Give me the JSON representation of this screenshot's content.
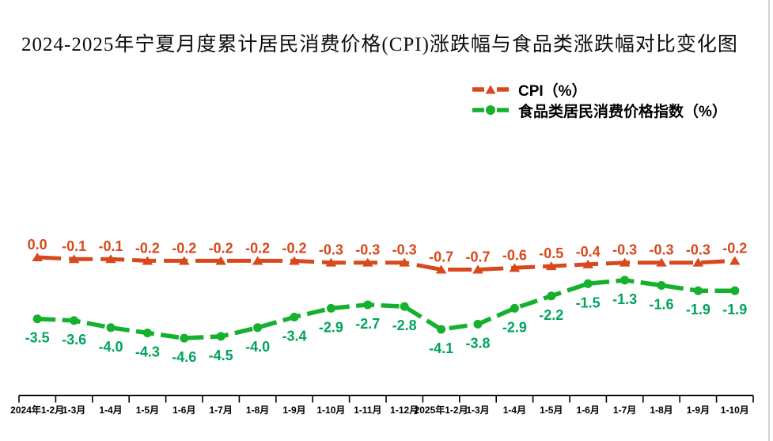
{
  "chart_data": {
    "type": "line",
    "title": "2024-2025年宁夏月度累计居民消费价格(CPI)涨跌幅与食品类涨跌幅对比变化图",
    "categories": [
      "2024年1-2月",
      "1-3月",
      "1-4月",
      "1-5月",
      "1-6月",
      "1-7月",
      "1-8月",
      "1-9月",
      "1-10月",
      "1-11月",
      "1-12月",
      "2025年1-2月",
      "1-3月",
      "1-4月",
      "1-5月",
      "1-6月",
      "1-7月",
      "1-8月",
      "1-9月",
      "1-10月"
    ],
    "series": [
      {
        "id": "cpi",
        "name": "CPI（%）",
        "color": "#d7481c",
        "label_color": "#d7481c",
        "marker": "triangle",
        "values": [
          0.0,
          -0.1,
          -0.1,
          -0.2,
          -0.2,
          -0.2,
          -0.2,
          -0.2,
          -0.3,
          -0.3,
          -0.3,
          -0.7,
          -0.7,
          -0.6,
          -0.5,
          -0.4,
          -0.3,
          -0.3,
          -0.3,
          -0.2
        ],
        "labels": [
          "0.0",
          "-0.1",
          "-0.1",
          "-0.2",
          "-0.2",
          "-0.2",
          "-0.2",
          "-0.2",
          "-0.3",
          "-0.3",
          "-0.3",
          "-0.7",
          "-0.7",
          "-0.6",
          "-0.5",
          "-0.4",
          "-0.3",
          "-0.3",
          "-0.3",
          "-0.2"
        ]
      },
      {
        "id": "food",
        "name": "食品类居民消费价格指数（%）",
        "color": "#14b02e",
        "label_color": "#00a45e",
        "marker": "circle",
        "values": [
          -3.5,
          -3.6,
          -4.0,
          -4.3,
          -4.6,
          -4.5,
          -4.0,
          -3.4,
          -2.9,
          -2.7,
          -2.8,
          -4.1,
          -3.8,
          -2.9,
          -2.2,
          -1.5,
          -1.3,
          -1.6,
          -1.9,
          -1.9
        ],
        "labels": [
          "-3.5",
          "-3.6",
          "-4.0",
          "-4.3",
          "-4.6",
          "-4.5",
          "-4.0",
          "-3.4",
          "-2.9",
          "-2.7",
          "-2.8",
          "-4.1",
          "-3.8",
          "-2.9",
          "-2.2",
          "-1.5",
          "-1.3",
          "-1.6",
          "-1.9",
          "-1.9"
        ]
      }
    ],
    "xlabel": "",
    "ylabel": "",
    "ylim": [
      -5,
      0.5
    ],
    "grid": false,
    "legend_position": "top-right",
    "axis_color": "#000000",
    "background_color": "#ffffff"
  }
}
